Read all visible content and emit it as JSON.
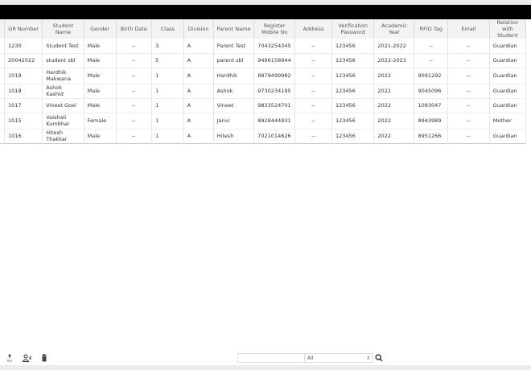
{
  "table": {
    "columns": [
      "",
      "GR Number",
      "Student Name",
      "Gender",
      "Birth Date",
      "Class",
      "Division",
      "Parent Name",
      "Register Mobile No",
      "Address",
      "Verification Password",
      "Academic Year",
      "RFID Tag",
      "Email",
      "Relation with Student"
    ],
    "rows": [
      [
        "",
        "1230",
        "Student Test",
        "Male",
        "--",
        "3",
        "A",
        "Parent Test",
        "7043254345",
        "--",
        "123456",
        "2021-2022",
        "--",
        "--",
        "Guardian"
      ],
      [
        "",
        "20042022",
        "student sbl",
        "Male",
        "--",
        "5",
        "A",
        "parent sbl",
        "9496158944",
        "--",
        "123456",
        "2022-2023",
        "--",
        "--",
        "Guardian"
      ],
      [
        "",
        "1019",
        "Hardhik Makwana",
        "Male",
        "--",
        "1",
        "A",
        "Hardhik",
        "8879499982",
        "--",
        "123456",
        "2022",
        "9091292",
        "--",
        "Guardian"
      ],
      [
        "",
        "1018",
        "Ashok Kashid",
        "Male",
        "--",
        "1",
        "A",
        "Ashok",
        "9730234195",
        "--",
        "123456",
        "2022",
        "9045096",
        "--",
        "Guardian"
      ],
      [
        "",
        "1017",
        "Vineet Goel",
        "Male",
        "--",
        "1",
        "A",
        "Vineet",
        "9833524701",
        "--",
        "123456",
        "2022",
        "1093047",
        "--",
        "Guardian"
      ],
      [
        "",
        "1015",
        "Vaishali Kumbhar",
        "Female",
        "--",
        "1",
        "A",
        "Janvi",
        "8928444931",
        "--",
        "123456",
        "2022",
        "8943989",
        "--",
        "Mother"
      ],
      [
        "",
        "1016",
        "Hitesh Thakkar",
        "Male",
        "--",
        "1",
        "A",
        "Hitesh",
        "7021014626",
        "--",
        "123456",
        "2022",
        "8951266",
        "--",
        "Guardian"
      ]
    ]
  },
  "footer": {
    "icons": [
      "export-xls-icon",
      "user-share-icon",
      "trash-icon"
    ],
    "search_value": "",
    "filter_selected": "All"
  }
}
